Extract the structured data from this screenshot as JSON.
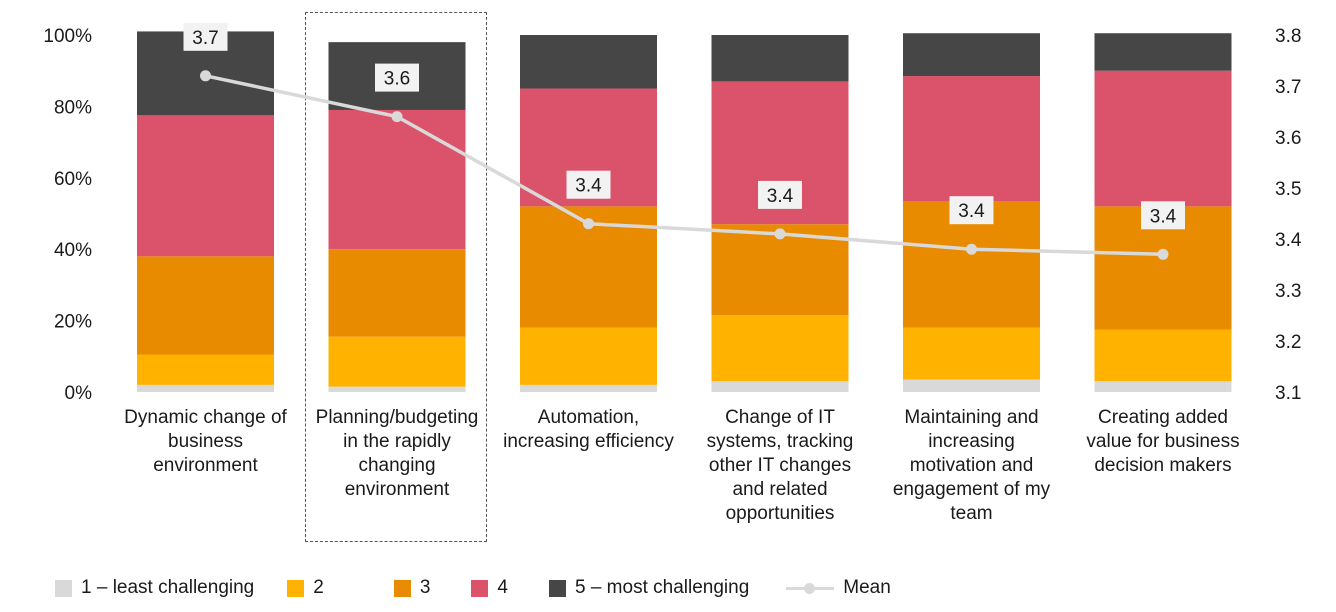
{
  "chart_data": {
    "type": "bar",
    "stacked": true,
    "categories": [
      "Dynamic change of business environment",
      "Planning/budgeting in the rapidly changing environment",
      "Automation, increasing efficiency",
      "Change of IT systems, tracking other IT changes and related opportunities",
      "Maintaining and increasing motivation and engagement of my team",
      "Creating added value for business decision makers"
    ],
    "category_lines": [
      [
        "Dynamic change of",
        "business",
        "environment"
      ],
      [
        "Planning/budgeting",
        "in the rapidly",
        "changing",
        "environment"
      ],
      [
        "Automation,",
        "increasing efficiency"
      ],
      [
        "Change of IT",
        "systems, tracking",
        "other IT changes",
        "and related",
        "opportunities"
      ],
      [
        "Maintaining and",
        "increasing",
        "motivation and",
        "engagement of my",
        "team"
      ],
      [
        "Creating added",
        "value for business",
        "decision makers"
      ]
    ],
    "series": [
      {
        "name": "1 – least challenging",
        "color": "#d9d9d9",
        "values": [
          2,
          1.5,
          2,
          3,
          3.5,
          3
        ]
      },
      {
        "name": "2",
        "color": "#ffb300",
        "values": [
          8.5,
          14,
          16,
          18.5,
          14.5,
          14.5
        ]
      },
      {
        "name": "3",
        "color": "#e88b00",
        "values": [
          27.5,
          24.5,
          34,
          25.5,
          35.5,
          34.5
        ]
      },
      {
        "name": "4",
        "color": "#db536a",
        "values": [
          39.5,
          39,
          33,
          40,
          35,
          38
        ]
      },
      {
        "name": "5 – most challenging",
        "color": "#464646",
        "values": [
          23.5,
          19,
          15,
          13,
          12,
          10.5
        ]
      }
    ],
    "line_series": {
      "name": "Mean",
      "color": "#d9d9d9",
      "axis": "right",
      "values": [
        3.72,
        3.64,
        3.43,
        3.41,
        3.38,
        3.37
      ],
      "labels": [
        "3.7",
        "3.6",
        "3.4",
        "3.4",
        "3.4",
        "3.4"
      ]
    },
    "left_axis": {
      "ylim": [
        0,
        100
      ],
      "ticks": [
        "0%",
        "20%",
        "40%",
        "60%",
        "80%",
        "100%"
      ]
    },
    "right_axis": {
      "ylim": [
        3.1,
        3.8
      ],
      "ticks": [
        "3.1",
        "3.2",
        "3.3",
        "3.4",
        "3.5",
        "3.6",
        "3.7",
        "3.8"
      ]
    },
    "highlighted_category": 1,
    "legend_position": "bottom",
    "grid": false
  },
  "legend": {
    "items": [
      {
        "label": "1 – least challenging",
        "color": "#d9d9d9"
      },
      {
        "label": "2",
        "color": "#ffb300"
      },
      {
        "label": "3",
        "color": "#e88b00"
      },
      {
        "label": "4",
        "color": "#db536a"
      },
      {
        "label": "5 – most challenging",
        "color": "#464646"
      }
    ],
    "mean_label": "Mean"
  }
}
